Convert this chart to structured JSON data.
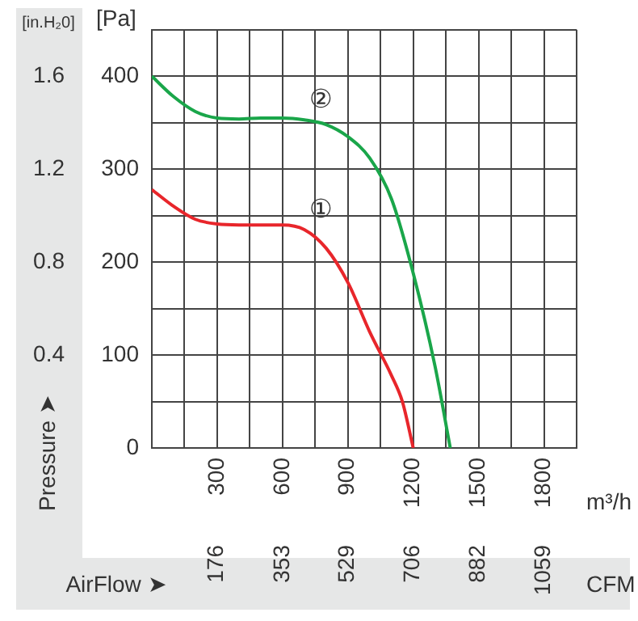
{
  "chart_data": {
    "type": "line",
    "xlabel": "m³/h",
    "x2label": "CFM",
    "ylabel": "[Pa]",
    "y2label": "[in.H₂0]",
    "xlim": [
      0,
      1950
    ],
    "xticks": [
      {
        "value": 0,
        "label": null
      },
      {
        "value": 150,
        "label": null
      },
      300,
      {
        "value": 450,
        "label": null
      },
      600,
      {
        "value": 750,
        "label": null
      },
      900,
      {
        "value": 1050,
        "label": null
      },
      1200,
      {
        "value": 1350,
        "label": null
      },
      1500,
      {
        "value": 1650,
        "label": null
      },
      1800,
      {
        "value": 1950,
        "label": null
      }
    ],
    "x2lim": [
      0,
      1147.7
    ],
    "x2ticks": [
      176,
      353,
      529,
      706,
      882,
      1059
    ],
    "ylim": [
      0,
      450
    ],
    "yticks": [
      0,
      {
        "value": 50,
        "label": null
      },
      100,
      {
        "value": 150,
        "label": null
      },
      200,
      {
        "value": 250,
        "label": null
      },
      300,
      {
        "value": 350,
        "label": null
      },
      400,
      {
        "value": 450,
        "label": null
      }
    ],
    "y2lim": [
      0,
      1.8
    ],
    "y2ticks": [
      0.4,
      0.8,
      1.2,
      1.6
    ],
    "grid": true,
    "marker": "none",
    "series": [
      {
        "name": "①",
        "color": "#e8262b",
        "x": [
          0,
          100,
          200,
          300,
          400,
          500,
          600,
          700,
          800,
          900,
          1000,
          1100,
          1150,
          1200
        ],
        "values": [
          278,
          260,
          246,
          241,
          240,
          240,
          240,
          235,
          215,
          178,
          125,
          78,
          50,
          0
        ]
      },
      {
        "name": "②",
        "color": "#1aa64a",
        "x": [
          0,
          100,
          200,
          300,
          400,
          500,
          600,
          700,
          800,
          900,
          1000,
          1100,
          1200,
          1300,
          1370
        ],
        "values": [
          400,
          378,
          362,
          355,
          354,
          355,
          355,
          353,
          348,
          335,
          312,
          268,
          188,
          88,
          0
        ]
      }
    ],
    "annotations": [
      "Pressure ➤",
      "AirFlow ➤"
    ]
  }
}
